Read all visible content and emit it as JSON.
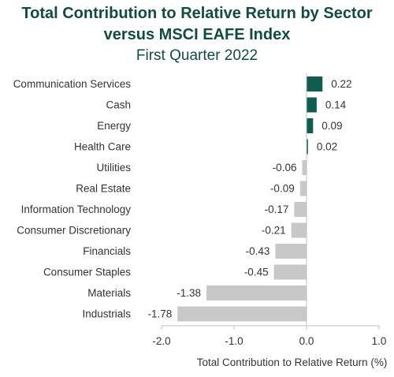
{
  "chart_data": {
    "type": "bar",
    "orientation": "horizontal",
    "title": "Total Contribution to Relative Return by Sector versus MSCI EAFE Index",
    "title_lines": [
      "Total Contribution to Relative Return by Sector",
      "versus MSCI EAFE Index"
    ],
    "subtitle": "First Quarter 2022",
    "xlabel": "Total Contribution to Relative Return (%)",
    "ylabel": "",
    "xlim": [
      -2.0,
      1.0
    ],
    "xticks": [
      "-2.0",
      "-1.0",
      "0.0",
      "1.0"
    ],
    "xtick_values": [
      -2.0,
      -1.0,
      0.0,
      1.0
    ],
    "categories": [
      "Communication Services",
      "Cash",
      "Energy",
      "Health Care",
      "Utilities",
      "Real Estate",
      "Information Technology",
      "Consumer Discretionary",
      "Financials",
      "Consumer Staples",
      "Materials",
      "Industrials"
    ],
    "values": [
      0.22,
      0.14,
      0.09,
      0.02,
      -0.06,
      -0.09,
      -0.17,
      -0.21,
      -0.43,
      -0.45,
      -1.38,
      -1.78
    ],
    "value_labels": [
      "0.22",
      "0.14",
      "0.09",
      "0.02",
      "-0.06",
      "-0.09",
      "-0.17",
      "-0.21",
      "-0.43",
      "-0.45",
      "-1.38",
      "-1.78"
    ],
    "grid": false,
    "colors": {
      "title": "#0f4d3f",
      "positive": "#0f5c50",
      "negative": "#c8c8c8",
      "axis": "#bfbfbf",
      "text": "#333333"
    }
  }
}
